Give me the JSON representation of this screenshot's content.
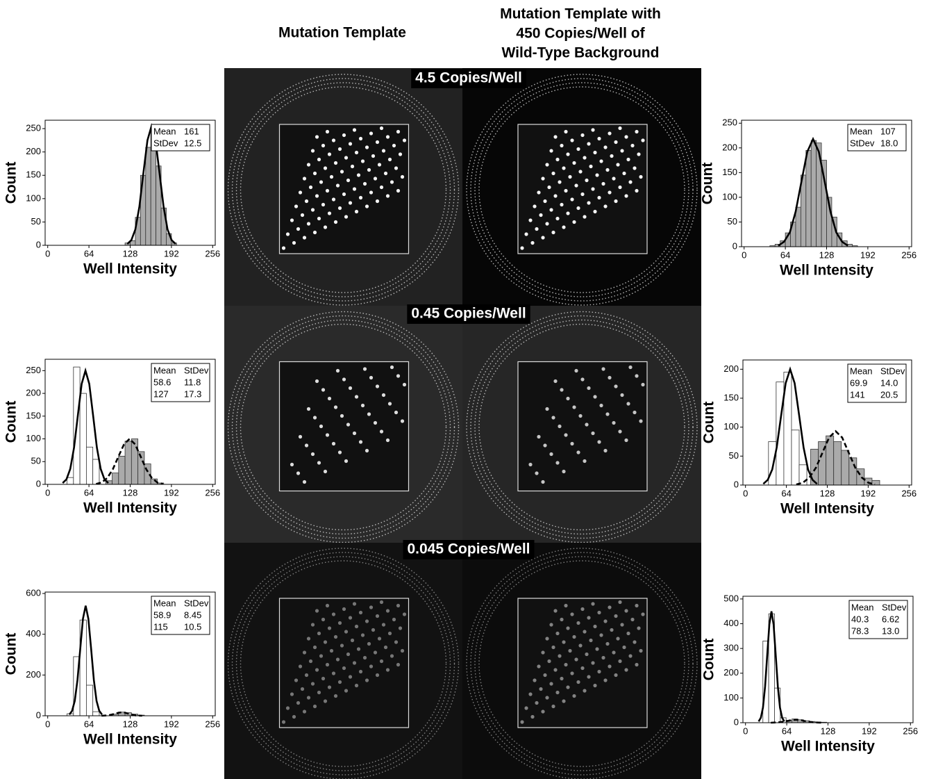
{
  "column_titles": [
    [
      "Mutation Template"
    ],
    [
      "Mutation Template with",
      "450 Copies/Well of",
      "Wild-Type Background"
    ]
  ],
  "row_labels": [
    "4.5 Copies/Well",
    "0.45 Copies/Well",
    "0.045 Copies/Well"
  ],
  "chart_data": [
    {
      "type": "histogram",
      "xlabel": "Well Intensity",
      "ylabel": "Count",
      "xlim": [
        -4,
        260
      ],
      "ylim": [
        0,
        268
      ],
      "xticks": [
        0,
        64,
        128,
        192,
        256
      ],
      "yticks": [
        0,
        50,
        100,
        150,
        200,
        250
      ],
      "histograms": [
        {
          "color": "#aaaaaa",
          "bins": [
            120,
            128,
            136,
            144,
            152,
            160,
            168,
            176,
            184,
            192,
            200
          ],
          "values": [
            5,
            10,
            60,
            150,
            210,
            250,
            170,
            80,
            25,
            5
          ]
        }
      ],
      "fits": [
        {
          "dash": false,
          "x": [
            123.5,
            129.8,
            136,
            142.3,
            148.5,
            154.8,
            161,
            167.3,
            173.5,
            179.8,
            186,
            192.3,
            198.5
          ],
          "values": [
            3,
            11,
            34,
            83,
            155,
            225,
            255,
            225,
            155,
            83,
            34,
            11,
            3
          ]
        }
      ],
      "stats": [
        [
          "Mean",
          "161"
        ],
        [
          "StDev",
          "12.5"
        ]
      ]
    },
    {
      "type": "histogram",
      "xlabel": "Well Intensity",
      "ylabel": "Count",
      "xlim": [
        -4,
        260
      ],
      "ylim": [
        0,
        256
      ],
      "xticks": [
        0,
        64,
        128,
        192,
        256
      ],
      "yticks": [
        0,
        50,
        100,
        150,
        200,
        250
      ],
      "histograms": [
        {
          "color": "#aaaaaa",
          "bins": [
            40,
            48,
            56,
            64,
            72,
            80,
            88,
            96,
            104,
            112,
            120,
            128,
            136,
            144,
            152,
            160,
            168,
            176
          ],
          "values": [
            2,
            5,
            12,
            28,
            50,
            80,
            145,
            195,
            215,
            210,
            175,
            100,
            60,
            28,
            12,
            5,
            2
          ]
        }
      ],
      "fits": [
        {
          "dash": false,
          "x": [
            53,
            62,
            71,
            80,
            89,
            98,
            107,
            116,
            125,
            134,
            143,
            152,
            161
          ],
          "values": [
            2,
            10,
            29,
            71,
            132,
            192,
            218,
            192,
            132,
            71,
            29,
            10,
            2
          ]
        }
      ],
      "stats": [
        [
          "Mean",
          "107"
        ],
        [
          "StDev",
          "18.0"
        ]
      ]
    },
    {
      "type": "histogram",
      "xlabel": "Well Intensity",
      "ylabel": "Count",
      "xlim": [
        -4,
        260
      ],
      "ylim": [
        0,
        275
      ],
      "xticks": [
        0,
        64,
        128,
        192,
        256
      ],
      "yticks": [
        0,
        50,
        100,
        150,
        200,
        250
      ],
      "histograms": [
        {
          "color": "#ffffff",
          "bins": [
            30,
            40,
            50,
            60,
            70,
            80
          ],
          "values": [
            15,
            258,
            200,
            82,
            55
          ]
        },
        {
          "color": "#aaaaaa",
          "bins": [
            90,
            100,
            110,
            120,
            130,
            140,
            150,
            160,
            170,
            180
          ],
          "values": [
            8,
            25,
            62,
            95,
            100,
            72,
            45,
            12,
            3
          ]
        }
      ],
      "fits": [
        {
          "dash": false,
          "x": [
            23.2,
            29.1,
            35,
            40.9,
            46.8,
            52.7,
            58.6,
            64.5,
            70.4,
            76.3,
            82.2,
            88.1,
            94
          ],
          "values": [
            3,
            11,
            34,
            81,
            152,
            221,
            250,
            221,
            152,
            81,
            34,
            11,
            3
          ]
        },
        {
          "dash": true,
          "x": [
            75.1,
            83.7,
            92.4,
            101,
            109.7,
            118.4,
            127,
            135.7,
            144.3,
            153,
            161.6,
            170.3,
            178.9
          ],
          "values": [
            1,
            4,
            14,
            33,
            61,
            88,
            100,
            88,
            61,
            33,
            14,
            4,
            1
          ]
        }
      ],
      "stats": [
        [
          "Mean",
          "StDev"
        ],
        [
          "58.6",
          "11.8"
        ],
        [
          "127",
          "17.3"
        ]
      ]
    },
    {
      "type": "histogram",
      "xlabel": "Well Intensity",
      "ylabel": "Count",
      "xlim": [
        -4,
        260
      ],
      "ylim": [
        0,
        216
      ],
      "xticks": [
        0,
        64,
        128,
        192,
        256
      ],
      "yticks": [
        0,
        50,
        100,
        150,
        200
      ],
      "histograms": [
        {
          "color": "#ffffff",
          "bins": [
            36,
            48,
            60,
            72,
            84,
            96
          ],
          "values": [
            75,
            178,
            195,
            95,
            35
          ]
        },
        {
          "color": "#aaaaaa",
          "bins": [
            102,
            114,
            126,
            138,
            150,
            162,
            174,
            186,
            198,
            210
          ],
          "values": [
            62,
            75,
            85,
            75,
            60,
            47,
            28,
            12,
            8
          ]
        }
      ],
      "fits": [
        {
          "dash": false,
          "x": [
            27.9,
            34.9,
            41.9,
            48.9,
            55.9,
            62.9,
            69.9,
            76.9,
            83.9,
            90.9,
            97.9,
            104.9,
            111.9
          ],
          "values": [
            2,
            9,
            27,
            65,
            121,
            176,
            200,
            176,
            121,
            65,
            27,
            9,
            2
          ]
        },
        {
          "dash": true,
          "x": [
            79.5,
            89.8,
            100,
            110.3,
            120.5,
            130.8,
            141,
            151.3,
            161.5,
            171.8,
            182,
            192.3,
            202.5
          ],
          "values": [
            1,
            4,
            13,
            30,
            56,
            82,
            93,
            82,
            56,
            30,
            13,
            4,
            1
          ]
        }
      ],
      "stats": [
        [
          "Mean",
          "StDev"
        ],
        [
          "69.9",
          "14.0"
        ],
        [
          "141",
          "20.5"
        ]
      ]
    },
    {
      "type": "histogram",
      "xlabel": "Well Intensity",
      "ylabel": "Count",
      "xlim": [
        -4,
        260
      ],
      "ylim": [
        0,
        607
      ],
      "xticks": [
        0,
        64,
        128,
        192,
        256
      ],
      "yticks": [
        0,
        200,
        400,
        600
      ],
      "histograms": [
        {
          "color": "#ffffff",
          "bins": [
            30,
            40,
            50,
            60,
            70,
            80
          ],
          "values": [
            10,
            290,
            470,
            150,
            20
          ]
        },
        {
          "color": "#aaaaaa",
          "bins": [
            100,
            110,
            120,
            130,
            140,
            150
          ],
          "values": [
            8,
            18,
            15,
            8,
            3
          ]
        }
      ],
      "fits": [
        {
          "dash": false,
          "x": [
            33.6,
            37.8,
            42,
            46.2,
            50.5,
            54.7,
            58.9,
            63.1,
            67.4,
            71.6,
            75.8,
            80,
            84.3
          ],
          "values": [
            6,
            24,
            73,
            176,
            328,
            476,
            540,
            476,
            328,
            176,
            73,
            24,
            6
          ]
        },
        {
          "dash": true,
          "x": [
            83.5,
            88.8,
            94,
            99.3,
            104.5,
            109.8,
            115,
            120.3,
            125.5,
            130.8,
            136,
            141.3,
            146.5
          ],
          "values": [
            0,
            1,
            2,
            6,
            10,
            15,
            17,
            15,
            10,
            6,
            2,
            1,
            0
          ]
        }
      ],
      "stats": [
        [
          "Mean",
          "StDev"
        ],
        [
          "58.9",
          "8.45"
        ],
        [
          "115",
          "10.5"
        ]
      ]
    },
    {
      "type": "histogram",
      "xlabel": "Well Intensity",
      "ylabel": "Count",
      "xlim": [
        -4,
        260
      ],
      "ylim": [
        0,
        511
      ],
      "xticks": [
        0,
        64,
        128,
        192,
        256
      ],
      "yticks": [
        0,
        100,
        200,
        300,
        400,
        500
      ],
      "histograms": [
        {
          "color": "#ffffff",
          "bins": [
            27,
            36,
            45,
            54,
            63
          ],
          "values": [
            330,
            440,
            140,
            20
          ]
        },
        {
          "color": "#aaaaaa",
          "bins": [
            63,
            72,
            81,
            90,
            99,
            108,
            117,
            126
          ],
          "values": [
            10,
            15,
            12,
            8,
            5,
            3,
            2
          ]
        }
      ],
      "fits": [
        {
          "dash": false,
          "x": [
            20.4,
            23.8,
            27.1,
            30.4,
            33.7,
            37,
            40.3,
            43.6,
            46.9,
            50.2,
            53.5,
            56.9,
            60.2
          ],
          "values": [
            5,
            20,
            61,
            146,
            273,
            397,
            450,
            397,
            273,
            146,
            61,
            20,
            5
          ]
        },
        {
          "dash": true,
          "x": [
            39.3,
            45.8,
            52.3,
            58.8,
            65.3,
            71.8,
            78.3,
            84.8,
            91.3,
            97.8,
            104.3,
            110.8,
            117.3
          ],
          "values": [
            0,
            1,
            2,
            4,
            7,
            11,
            12,
            11,
            7,
            4,
            2,
            1,
            0
          ]
        }
      ],
      "stats": [
        [
          "Mean",
          "StDev"
        ],
        [
          "40.3",
          "6.62"
        ],
        [
          "78.3",
          "13.0"
        ]
      ]
    }
  ]
}
